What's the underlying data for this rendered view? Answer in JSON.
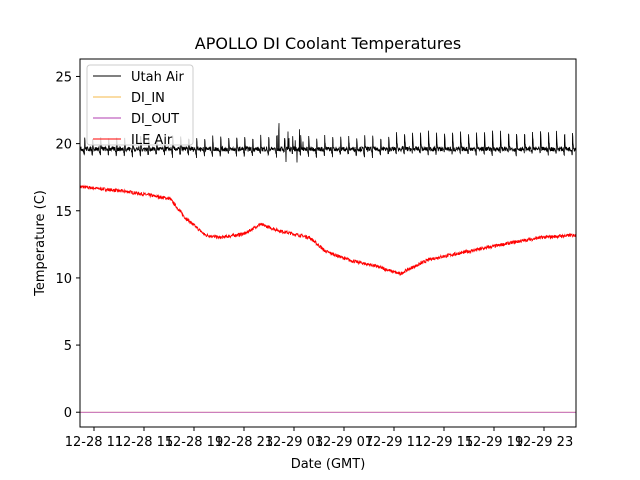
{
  "chart_data": {
    "type": "line",
    "title": "APOLLO DI Coolant Temperatures",
    "xlabel": "Date (GMT)",
    "ylabel": "Temperature (C)",
    "x_unit": "hours since 12-28 00:00 GMT",
    "xlim": [
      9.88,
      49.56
    ],
    "ylim": [
      -1.1,
      26.3
    ],
    "xticks": [
      11,
      15,
      19,
      23,
      27,
      31,
      35,
      39,
      43,
      47
    ],
    "xtick_labels": [
      "12-28 11",
      "12-28 15",
      "12-28 19",
      "12-28 23",
      "12-29 03",
      "12-29 07",
      "12-29 11",
      "12-29 15",
      "12-29 19",
      "12-29 23"
    ],
    "yticks": [
      0,
      5,
      10,
      15,
      20,
      25
    ],
    "ytick_labels": [
      "0",
      "5",
      "10",
      "15",
      "20",
      "25"
    ],
    "grid": false,
    "legend_position": "top-left",
    "series": [
      {
        "name": "Utah Air",
        "color": "#000000",
        "pattern": "oscillating",
        "mean": 19.6,
        "peak": 20.8,
        "trough": 19.1,
        "period_hours": 0.64,
        "glitch_hours": [
          25.5,
          28.0
        ],
        "glitch_range": [
          18.2,
          21.6
        ]
      },
      {
        "name": "DI_IN",
        "color": "#f5b84a",
        "x": [
          9.88,
          49.56
        ],
        "y": [
          0,
          0
        ]
      },
      {
        "name": "DI_OUT",
        "color": "#b03cb0",
        "x": [
          9.88,
          49.56
        ],
        "y": [
          0,
          0
        ]
      },
      {
        "name": "ILE Air",
        "color": "#ff0000",
        "x": [
          9.88,
          13.88,
          17.08,
          18.28,
          19.88,
          21.08,
          23.08,
          24.28,
          25.88,
          28.28,
          29.48,
          31.48,
          33.48,
          35.48,
          36.28,
          37.88,
          41.08,
          44.28,
          46.68,
          49.56
        ],
        "y": [
          16.8,
          16.4,
          15.9,
          14.5,
          13.2,
          13.0,
          13.3,
          14.0,
          13.5,
          13.0,
          12.0,
          11.3,
          10.9,
          10.3,
          10.7,
          11.4,
          12.0,
          12.6,
          13.0,
          13.2
        ]
      }
    ]
  }
}
